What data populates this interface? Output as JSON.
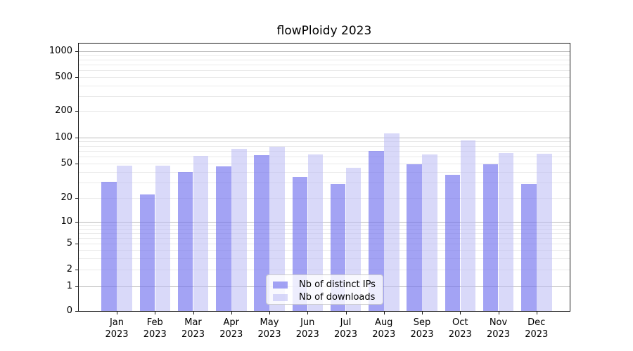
{
  "title": "flowPloidy 2023",
  "colors": {
    "bar_distinct_ips": "rgba(109,109,238,0.63)",
    "bar_downloads": "rgba(186,186,244,0.55)",
    "grid_major": "#bababa",
    "grid_minor": "#e9e9e9",
    "axis": "#1a1a1a"
  },
  "chart_data": {
    "type": "bar",
    "title": "flowPloidy 2023",
    "year": "2023",
    "categories": [
      "Jan",
      "Feb",
      "Mar",
      "Apr",
      "May",
      "Jun",
      "Jul",
      "Aug",
      "Sep",
      "Oct",
      "Nov",
      "Dec"
    ],
    "series": [
      {
        "name": "Nb of distinct IPs",
        "color_key": "bar_distinct_ips",
        "values": [
          31,
          22,
          40,
          46,
          62,
          35,
          29,
          70,
          49,
          37,
          49,
          29
        ]
      },
      {
        "name": "Nb of downloads",
        "color_key": "bar_downloads",
        "values": [
          47,
          47,
          61,
          74,
          78,
          63,
          45,
          110,
          64,
          92,
          66,
          65
        ]
      }
    ],
    "xlabel": "",
    "ylabel": "",
    "yticks_labeled": [
      0,
      1,
      2,
      5,
      10,
      20,
      50,
      100,
      200,
      500,
      1000
    ],
    "scale": "log-like (symlog with 0)",
    "grid": {
      "major": true,
      "minor": true
    },
    "legend_position": "lower center"
  }
}
